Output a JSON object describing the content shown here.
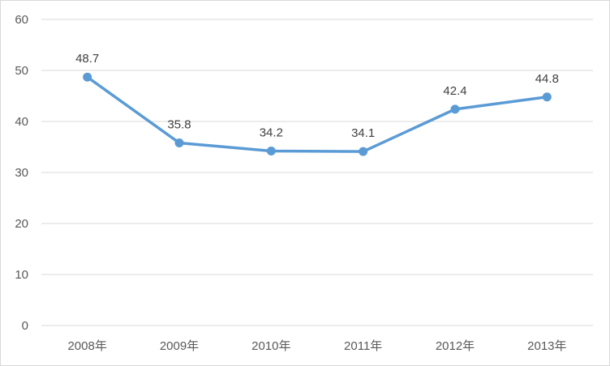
{
  "chart_data": {
    "type": "line",
    "title": "",
    "xlabel": "",
    "ylabel": "",
    "categories": [
      "2008年",
      "2009年",
      "2010年",
      "2011年",
      "2012年",
      "2013年"
    ],
    "series": [
      {
        "values": [
          48.7,
          35.8,
          34.2,
          34.1,
          42.4,
          44.8
        ],
        "data_labels": [
          "48.7",
          "35.8",
          "34.2",
          "34.1",
          "42.4",
          "44.8"
        ],
        "color": "#5b9bd5"
      }
    ],
    "ylim": [
      0,
      60
    ],
    "yticks": [
      0,
      10,
      20,
      30,
      40,
      50,
      60
    ],
    "ytick_labels": [
      "0",
      "10",
      "20",
      "30",
      "40",
      "50",
      "60"
    ],
    "grid": true,
    "legend": "none",
    "gridline_color": "#d9d9d9",
    "tick_label_color": "#595959"
  }
}
